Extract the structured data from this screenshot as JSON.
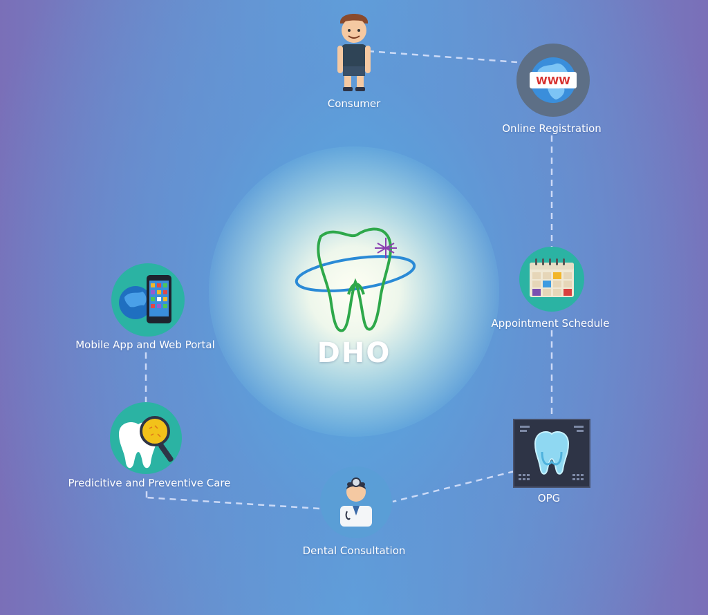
{
  "center": {
    "title": "DHO"
  },
  "nodes": {
    "consumer": "Consumer",
    "online_registration": "Online Registration",
    "appointment_schedule": "Appointment Schedule",
    "opg": "OPG",
    "dental_consultation": "Dental Consultation",
    "predictive_care": "Predicitive and Preventive Care",
    "mobile_app": "Mobile App and Web Portal"
  },
  "icons": {
    "consumer": "person-icon",
    "online_registration": "globe-www-icon",
    "appointment_schedule": "calendar-icon",
    "opg": "xray-tooth-icon",
    "dental_consultation": "doctor-icon",
    "predictive_care": "tooth-magnifier-icon",
    "mobile_app": "globe-phone-icon",
    "center": "tooth-logo-icon"
  },
  "www_text": "WWW",
  "colors": {
    "teal": "#2bb3a3",
    "slate": "#5d6f86",
    "dark_panel": "#2e3446",
    "label": "#ffffff",
    "tooth_outline": "#2ea84a",
    "orbit": "#2a8ad6"
  }
}
